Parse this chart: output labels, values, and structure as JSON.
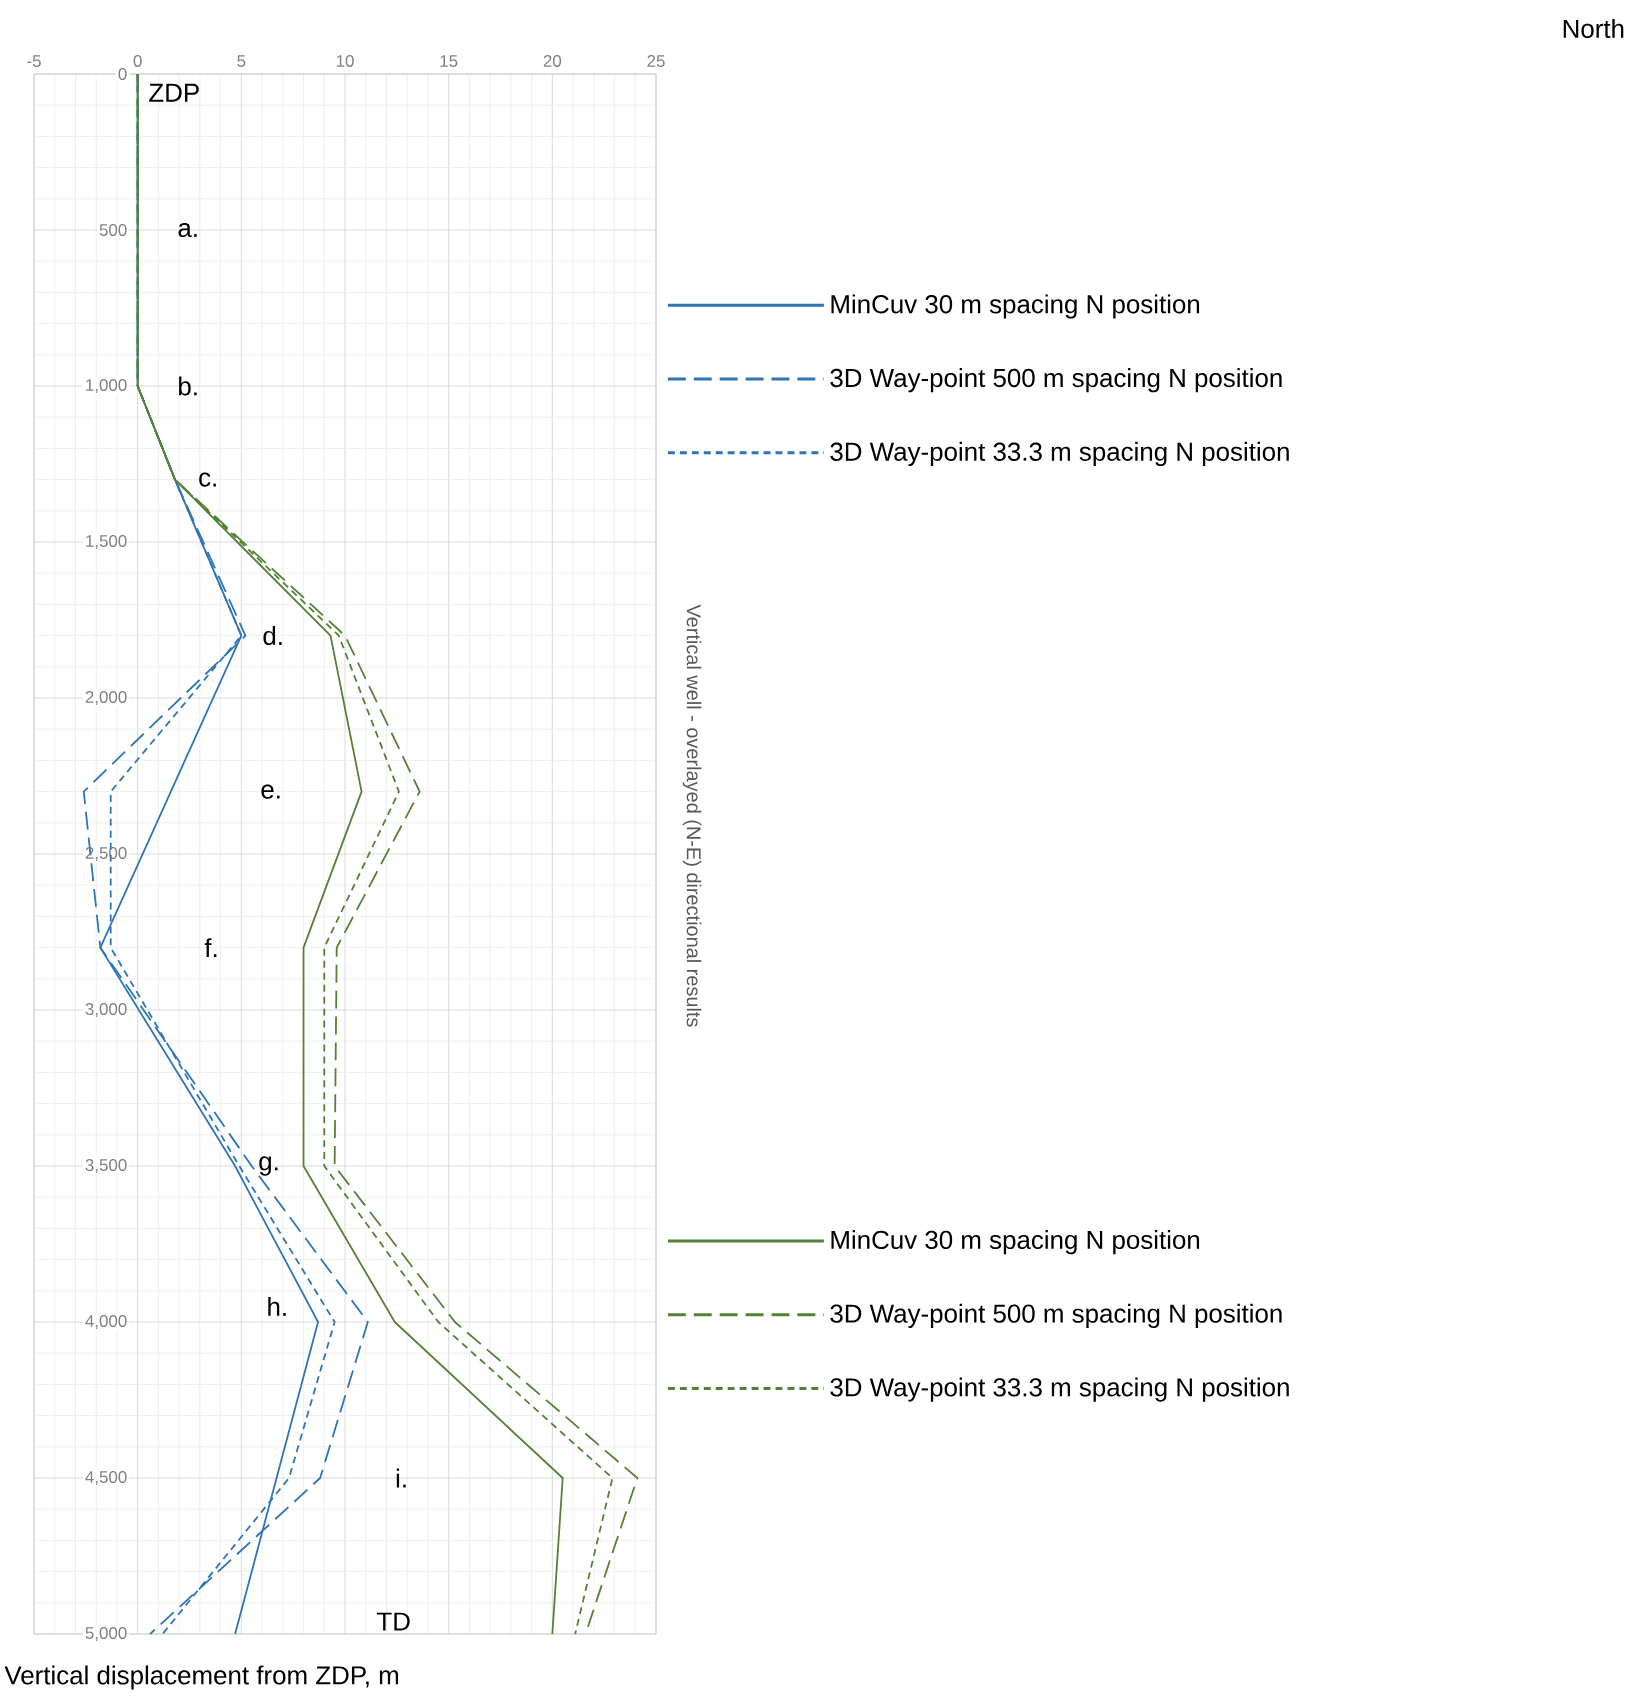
{
  "chart_data": {
    "type": "line",
    "ylabel": "Vertical displacement from ZDP, m",
    "xlim": [
      -5,
      25
    ],
    "xticks": [
      -5,
      0,
      5,
      10,
      15,
      20,
      25
    ],
    "ylim": [
      5000,
      0
    ],
    "yticks": [
      0,
      500,
      {
        "value": 1000,
        "label": "1,000"
      },
      {
        "value": 1500,
        "label": "1,500"
      },
      {
        "value": 2000,
        "label": "2,000"
      },
      {
        "value": 2500,
        "label": "2,500"
      },
      {
        "value": 3000,
        "label": "3,000"
      },
      {
        "value": 3500,
        "label": "3,500"
      },
      {
        "value": 4000,
        "label": "4,000"
      },
      {
        "value": 4500,
        "label": "4,500"
      },
      {
        "value": 5000,
        "label": "5,000"
      }
    ],
    "grid": true,
    "legend": "right",
    "series": [
      {
        "name": "MinCuv 30 m spacing N position",
        "color": "#2e75b6",
        "line_style": "solid",
        "x": [
          0,
          0,
          1.8,
          5.0,
          1.6,
          -1.8,
          4.7,
          8.7,
          6.7,
          4.7
        ],
        "values": [
          0,
          1000,
          1300,
          1800,
          2300,
          2800,
          3500,
          4000,
          4500,
          5000
        ]
      },
      {
        "name": "3D Way-point 500 m spacing N position",
        "color": "#2e75b6",
        "line_style": "dashed",
        "x": [
          0,
          0,
          1.8,
          5.2,
          -2.6,
          -1.8,
          5.5,
          11.1,
          8.8,
          0.6
        ],
        "values": [
          0,
          1000,
          1300,
          1800,
          2300,
          2800,
          3500,
          4000,
          4500,
          5000
        ]
      },
      {
        "name": "3D Way-point 33.3 m spacing N position",
        "color": "#2e75b6",
        "line_style": "dotted",
        "x": [
          0,
          0,
          1.8,
          5.0,
          -1.3,
          -1.3,
          4.9,
          9.5,
          7.3,
          1.2
        ],
        "values": [
          0,
          1000,
          1300,
          1800,
          2300,
          2800,
          3500,
          4000,
          4500,
          5000
        ]
      },
      {
        "name": "MinCuv 30 m spacing N position",
        "color": "#548235",
        "line_style": "solid",
        "x": [
          0,
          0,
          1.8,
          9.3,
          10.8,
          8.0,
          8.0,
          12.4,
          20.5,
          20.0
        ],
        "values": [
          0,
          1000,
          1300,
          1800,
          2300,
          2800,
          3500,
          4000,
          4500,
          5000
        ]
      },
      {
        "name": "3D Way-point 500 m spacing N position",
        "color": "#548235",
        "line_style": "dashed",
        "x": [
          0,
          0,
          1.8,
          10.0,
          13.6,
          9.6,
          9.5,
          15.3,
          24.1,
          21.6
        ],
        "values": [
          0,
          1000,
          1300,
          1800,
          2300,
          2800,
          3500,
          4000,
          4500,
          5000
        ]
      },
      {
        "name": "3D Way-point 33.3 m spacing N position",
        "color": "#548235",
        "line_style": "dotted",
        "x": [
          0,
          0,
          1.8,
          9.7,
          12.6,
          9.0,
          9.0,
          14.5,
          22.9,
          21.1
        ],
        "values": [
          0,
          1000,
          1300,
          1800,
          2300,
          2800,
          3500,
          4000,
          4500,
          5000
        ]
      }
    ],
    "annotations": [
      "North",
      "Vertical well - overlayed (N-E) directional results",
      "ZDP",
      "a.",
      "b.",
      "c.",
      "d.",
      "e.",
      "f.",
      "g.",
      "h.",
      "i.",
      "TD"
    ]
  }
}
